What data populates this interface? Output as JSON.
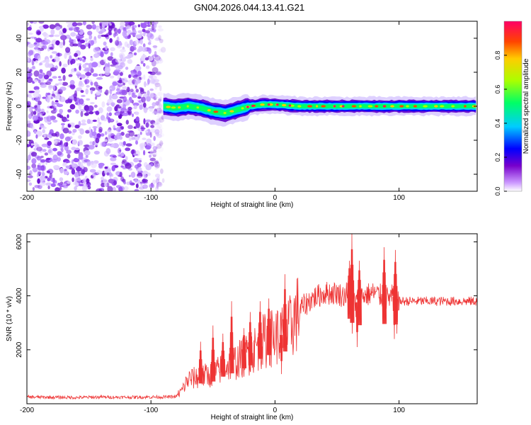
{
  "title": "GN04.2026.044.13.41.G21",
  "chart_data": [
    {
      "type": "heatmap",
      "xlabel": "Height of straight line (km)",
      "ylabel": "Frequency (Hz)",
      "xlim": [
        -200,
        163
      ],
      "ylim": [
        -50,
        50
      ],
      "x_ticks": [
        -200,
        -100,
        0,
        100
      ],
      "y_ticks": [
        -40,
        -20,
        0,
        20,
        40
      ],
      "x_tick_labels": [
        "-200",
        "-100",
        "0",
        "100"
      ],
      "y_tick_labels": [
        "-40",
        "-20",
        "0",
        "20",
        "40"
      ],
      "noise_region_x": [
        -200,
        -90
      ],
      "signal_start_x": -90,
      "trace_frequency": [
        {
          "x": -90,
          "f": 0
        },
        {
          "x": -80,
          "f": -1
        },
        {
          "x": -70,
          "f": 0
        },
        {
          "x": -60,
          "f": -1
        },
        {
          "x": -50,
          "f": -3
        },
        {
          "x": -40,
          "f": -4
        },
        {
          "x": -30,
          "f": -2
        },
        {
          "x": -20,
          "f": 0
        },
        {
          "x": -10,
          "f": 1
        },
        {
          "x": 0,
          "f": 1
        },
        {
          "x": 20,
          "f": 0
        },
        {
          "x": 50,
          "f": 0
        },
        {
          "x": 100,
          "f": 0
        },
        {
          "x": 163,
          "f": 0
        }
      ],
      "colorbar": {
        "label": "Normalized spectral amplitude",
        "range": [
          0,
          1
        ],
        "ticks": [
          0,
          0.2,
          0.4,
          0.6,
          0.8
        ],
        "tick_labels": [
          "0.0",
          "0.2",
          "0.4",
          "0.6",
          "0.8"
        ],
        "colors": [
          "#ffffff",
          "#cc99ff",
          "#7700cc",
          "#0000ff",
          "#00ccff",
          "#00ff66",
          "#aaff00",
          "#ffcc00",
          "#ff4400",
          "#ff0066"
        ]
      }
    },
    {
      "type": "line",
      "xlabel": "Height of straight line (km)",
      "ylabel": "SNR (10 * v/v)",
      "xlim": [
        -200,
        163
      ],
      "ylim": [
        0,
        6300
      ],
      "x_ticks": [
        -200,
        -100,
        0,
        100
      ],
      "y_ticks": [
        2000,
        4000,
        6000
      ],
      "x_tick_labels": [
        "-200",
        "-100",
        "0",
        "100"
      ],
      "y_tick_labels": [
        "2000",
        "4000",
        "6000"
      ],
      "series": [
        {
          "name": "SNR",
          "color": "#ee3333",
          "x": [
            -200,
            -180,
            -160,
            -140,
            -120,
            -100,
            -90,
            -80,
            -75,
            -70,
            -60,
            -50,
            -40,
            -30,
            -20,
            -10,
            0,
            10,
            15,
            20,
            30,
            40,
            50,
            55,
            60,
            65,
            70,
            80,
            90,
            95,
            100,
            110,
            120,
            130,
            140,
            150,
            163
          ],
          "values": [
            250,
            240,
            230,
            250,
            240,
            250,
            250,
            260,
            500,
            900,
            1000,
            1100,
            1400,
            1600,
            1900,
            2300,
            2500,
            2600,
            3100,
            3500,
            3900,
            4100,
            4100,
            4000,
            4200,
            3700,
            4000,
            4100,
            3900,
            4000,
            3800,
            3800,
            3800,
            3800,
            3800,
            3800,
            3800
          ]
        }
      ],
      "spikes": [
        {
          "x": -60,
          "hi": 2300
        },
        {
          "x": -50,
          "hi": 2900
        },
        {
          "x": -42,
          "hi": 2600
        },
        {
          "x": -35,
          "hi": 3800
        },
        {
          "x": -25,
          "hi": 2800
        },
        {
          "x": -20,
          "hi": 3400
        },
        {
          "x": -12,
          "hi": 3800
        },
        {
          "x": -5,
          "hi": 3900
        },
        {
          "x": 8,
          "hi": 4800
        },
        {
          "x": 60,
          "hi": 5300
        },
        {
          "x": 62,
          "hi": 6300
        },
        {
          "x": 68,
          "hi": 5300
        },
        {
          "x": 88,
          "hi": 5800
        },
        {
          "x": 97,
          "hi": 5700
        }
      ],
      "dips": [
        {
          "x": 5,
          "lo": 1100
        },
        {
          "x": 62,
          "lo": 2600
        },
        {
          "x": 66,
          "lo": 2100
        },
        {
          "x": 96,
          "lo": 2400
        },
        {
          "x": 98,
          "lo": 2600
        }
      ]
    }
  ]
}
